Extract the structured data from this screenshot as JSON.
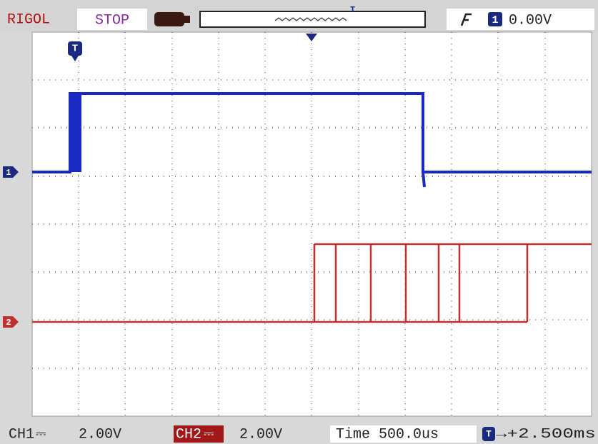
{
  "header": {
    "brand": "RIGOL",
    "status": "STOP",
    "trigger": {
      "source": "1",
      "level": "0.00V"
    }
  },
  "markers": {
    "trigger": "T",
    "ch1": "1",
    "ch2": "2",
    "memory": "T"
  },
  "footer": {
    "ch1": {
      "label": "CH1",
      "coupling": "⎓",
      "scale": "2.00V"
    },
    "ch2": {
      "label": "CH2",
      "coupling": "⎓",
      "scale": "2.00V"
    },
    "timebase": "Time 500.0us",
    "offset": {
      "icon": "T",
      "value": "→+2.500ms"
    }
  }
}
